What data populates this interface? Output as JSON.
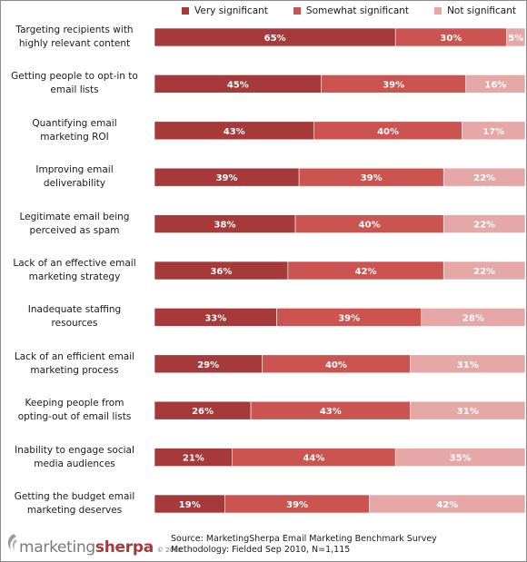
{
  "chart_data": {
    "type": "bar",
    "orientation": "horizontal",
    "stacked": true,
    "categories": [
      [
        "Targeting recipients with",
        "highly relevant content"
      ],
      [
        "Getting people to opt-in to",
        "email lists"
      ],
      [
        "Quantifying email",
        "marketing ROI"
      ],
      [
        "Improving email",
        "deliverability"
      ],
      [
        "Legitimate email being",
        "perceived as spam"
      ],
      [
        "Lack of an effective email",
        "marketing strategy"
      ],
      [
        "Inadequate staffing",
        "resources"
      ],
      [
        "Lack of an efficient email",
        "marketing process"
      ],
      [
        "Keeping people from",
        "opting-out of email lists"
      ],
      [
        "Inability to engage social",
        "media audiences"
      ],
      [
        "Getting the budget email",
        "marketing deserves"
      ]
    ],
    "series": [
      {
        "name": "Very significant",
        "color": "#a63a3a",
        "values": [
          65,
          45,
          43,
          39,
          38,
          36,
          33,
          29,
          26,
          21,
          19
        ]
      },
      {
        "name": "Somewhat significant",
        "color": "#cc5450",
        "values": [
          30,
          39,
          40,
          39,
          40,
          42,
          39,
          40,
          43,
          44,
          39
        ]
      },
      {
        "name": "Not significant",
        "color": "#e6a8a6",
        "values": [
          5,
          16,
          17,
          22,
          22,
          22,
          28,
          31,
          31,
          35,
          42
        ]
      }
    ],
    "value_suffix": "%",
    "xlim": [
      0,
      100
    ],
    "legend_position": "top",
    "grid": false
  },
  "footer": {
    "logo_light": "marketing",
    "logo_bold": "sherpa",
    "logo_year": "© 2010",
    "source_line1": "Source: MarketingSherpa Email Marketing Benchmark Survey",
    "source_line2": "Methodology: Fielded Sep 2010, N=1,115"
  }
}
